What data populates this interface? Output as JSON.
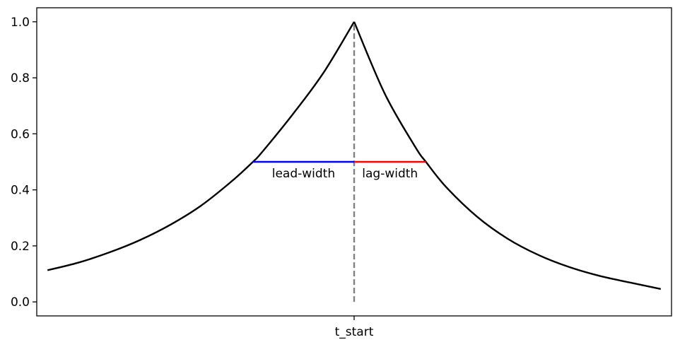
{
  "chart_data": {
    "type": "line",
    "title": "",
    "xlabel": "",
    "ylabel": "",
    "ylim": [
      -0.05,
      1.05
    ],
    "xlim": [
      -1.035,
      1.035
    ],
    "yticks": [
      0.0,
      0.2,
      0.4,
      0.6,
      0.8,
      1.0
    ],
    "ytick_labels": [
      "0.0",
      "0.2",
      "0.4",
      "0.6",
      "0.8",
      "1.0"
    ],
    "xticks": [
      0
    ],
    "xtick_labels": [
      "t_start"
    ],
    "grid": false,
    "legend": "none",
    "series": [
      {
        "color": "#000000",
        "x": [
          -1.0,
          -0.9,
          -0.8,
          -0.7,
          -0.6,
          -0.5,
          -0.4,
          -0.33,
          -0.3,
          -0.2,
          -0.1,
          0.0
        ],
        "y": [
          0.113,
          0.14,
          0.176,
          0.22,
          0.275,
          0.343,
          0.43,
          0.5,
          0.535,
          0.67,
          0.818,
          1.0
        ]
      },
      {
        "color": "#000000",
        "x": [
          0.0,
          0.1,
          0.2,
          0.234,
          0.3,
          0.4,
          0.5,
          0.6,
          0.7,
          0.8,
          0.9,
          1.0
        ],
        "y": [
          1.0,
          0.743,
          0.552,
          0.5,
          0.41,
          0.305,
          0.226,
          0.168,
          0.125,
          0.093,
          0.069,
          0.046
        ]
      }
    ],
    "vline": {
      "x": 0,
      "color": "#808080",
      "style": "dashed",
      "ymin": 0.0,
      "ymax": 1.0
    },
    "segments": [
      {
        "name": "lead-width",
        "x_start": -0.33,
        "x_end": 0.0,
        "y": 0.5,
        "color": "#0000ff",
        "label": "lead-width"
      },
      {
        "name": "lag-width",
        "x_start": 0.0,
        "x_end": 0.234,
        "y": 0.5,
        "color": "#ff0000",
        "label": "lag-width"
      }
    ]
  }
}
